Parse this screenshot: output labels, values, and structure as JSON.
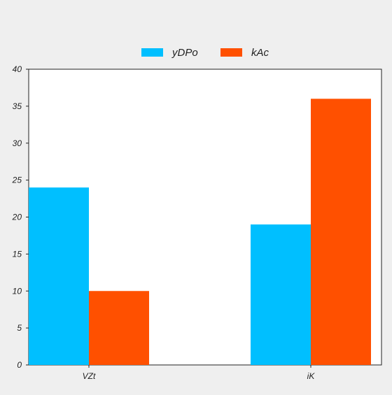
{
  "chart_data": {
    "type": "bar",
    "title": "",
    "xlabel": "",
    "ylabel": "",
    "categories": [
      "VZt",
      "iK"
    ],
    "series": [
      {
        "name": "yDPo",
        "color": "#00bfff",
        "values": [
          24,
          19
        ]
      },
      {
        "name": "kAc",
        "color": "#ff5000",
        "values": [
          10,
          36
        ]
      }
    ],
    "ylim": [
      0,
      40
    ],
    "yticks": [
      0,
      5,
      10,
      15,
      20,
      25,
      30,
      35,
      40
    ],
    "grid": false,
    "legend_position": "top-center"
  },
  "colors": {
    "background": "#efefef",
    "plot_background": "#ffffff",
    "axis": "#222222"
  }
}
